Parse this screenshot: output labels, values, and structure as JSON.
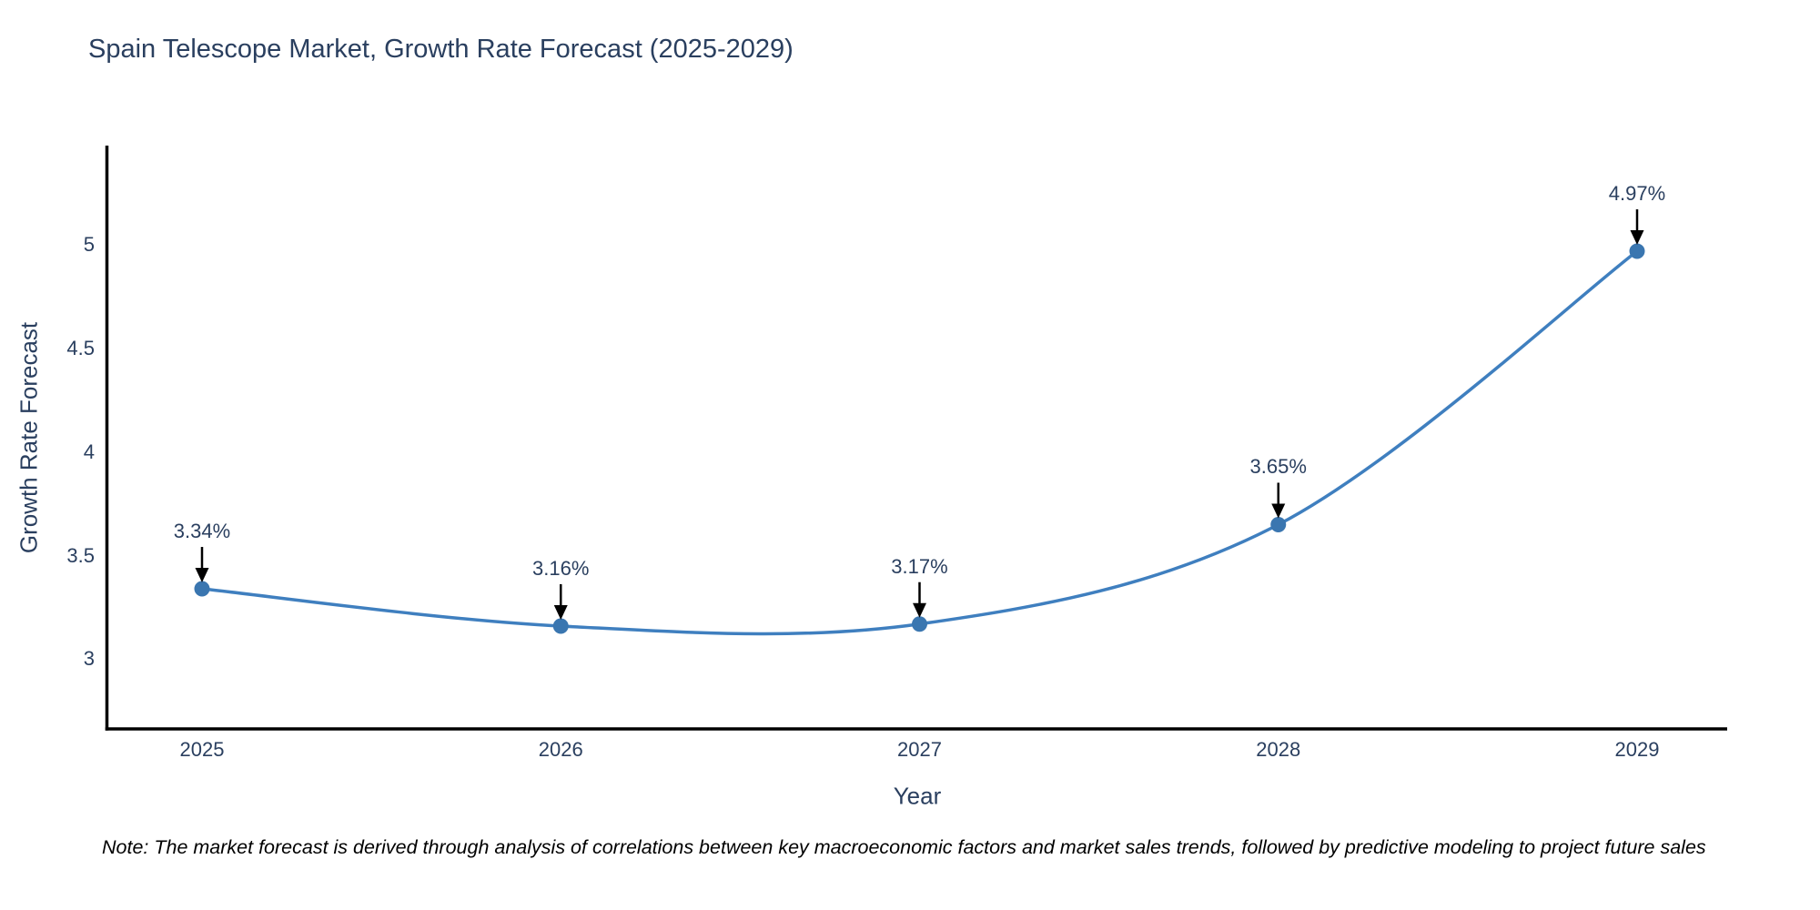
{
  "chart_data": {
    "type": "line",
    "title": "Spain Telescope Market, Growth Rate Forecast (2025-2029)",
    "xlabel": "Year",
    "ylabel": "Growth Rate Forecast",
    "x": [
      2025,
      2026,
      2027,
      2028,
      2029
    ],
    "xtick_labels": [
      "2025",
      "2026",
      "2027",
      "2028",
      "2029"
    ],
    "values": [
      3.34,
      3.16,
      3.17,
      3.65,
      4.97
    ],
    "point_labels": [
      "3.34%",
      "3.16%",
      "3.17%",
      "3.65%",
      "4.97%"
    ],
    "ytick_values": [
      3,
      3.5,
      4,
      4.5,
      5
    ],
    "ytick_labels": [
      "3",
      "3.5",
      "4",
      "4.5",
      "5"
    ],
    "ylim": [
      2.66,
      5.48
    ],
    "grid": false,
    "legend": "none",
    "line_shape": "spline",
    "annotation_style": "text with black down arrow pointing to each point",
    "colors": {
      "line": "#3f7fbf",
      "marker": "#3a76b0",
      "arrow": "#000000",
      "spine": "#000000",
      "text": "#2a3f5f"
    },
    "note": "Note: The market forecast is derived through analysis of correlations between key macroeconomic factors and market sales trends, followed by predictive modeling to project future sales"
  }
}
